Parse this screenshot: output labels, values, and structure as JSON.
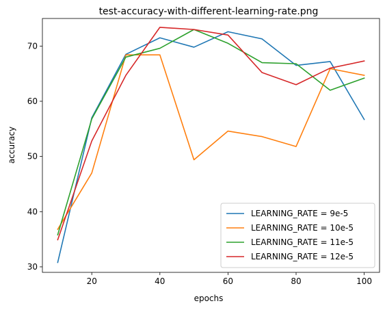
{
  "chart_data": {
    "type": "line",
    "title": "test-accuracy-with-different-learning-rate.png",
    "xlabel": "epochs",
    "ylabel": "accuracy",
    "x": [
      10,
      20,
      30,
      40,
      50,
      60,
      70,
      80,
      90,
      100
    ],
    "xlim": [
      5.5,
      104.5
    ],
    "ylim": [
      29.0,
      75.0
    ],
    "xticks": [
      20,
      40,
      60,
      80,
      100
    ],
    "yticks": [
      30,
      40,
      50,
      60,
      70
    ],
    "grid": false,
    "legend_position": "lower right",
    "series": [
      {
        "name": "LEARNING_RATE = 9e-5",
        "color": "#1f77b4",
        "values": [
          30.8,
          57.0,
          68.5,
          71.5,
          69.8,
          72.6,
          71.3,
          66.5,
          67.2,
          56.7
        ]
      },
      {
        "name": "LEARNING_RATE = 10e-5",
        "color": "#ff7f0e",
        "values": [
          36.8,
          47.0,
          68.4,
          68.4,
          49.4,
          54.6,
          53.6,
          51.8,
          65.9,
          64.7
        ]
      },
      {
        "name": "LEARNING_RATE = 11e-5",
        "color": "#2ca02c",
        "values": [
          35.8,
          56.8,
          68.0,
          69.6,
          73.0,
          70.5,
          67.0,
          66.8,
          62.0,
          64.2
        ]
      },
      {
        "name": "LEARNING_RATE = 12e-5",
        "color": "#d62728",
        "values": [
          34.9,
          52.8,
          64.7,
          73.4,
          73.0,
          72.0,
          65.2,
          63.0,
          66.0,
          67.3
        ]
      }
    ]
  }
}
